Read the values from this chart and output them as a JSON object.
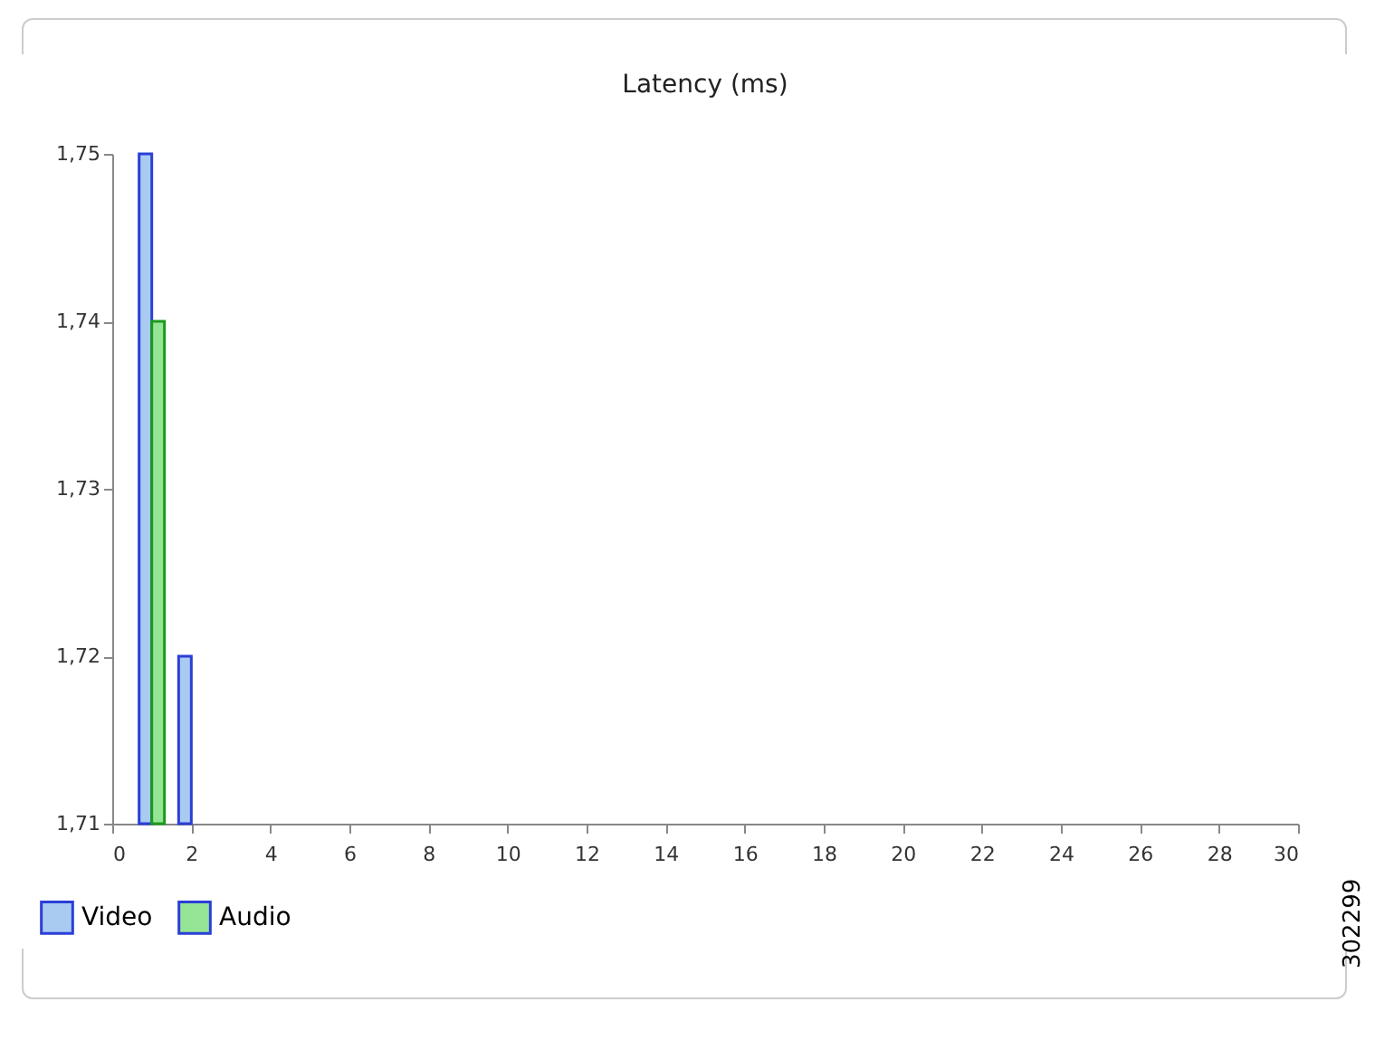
{
  "chart_data": {
    "type": "bar",
    "title": "Latency (ms)",
    "x": [
      1,
      2
    ],
    "series": [
      {
        "name": "Video",
        "color": "#a9cbf2",
        "values": [
          1.75,
          1.72
        ]
      },
      {
        "name": "Audio",
        "color": "#96e496",
        "values": [
          1.74,
          null
        ]
      }
    ],
    "xlim": [
      0,
      30
    ],
    "xticks": [
      0,
      2,
      4,
      6,
      8,
      10,
      12,
      14,
      16,
      18,
      20,
      22,
      24,
      26,
      28,
      30
    ],
    "ylim": [
      1.71,
      1.75
    ],
    "yticks": [
      {
        "value": 1.71,
        "label": "1,71"
      },
      {
        "value": 1.72,
        "label": "1,72"
      },
      {
        "value": 1.73,
        "label": "1,73"
      },
      {
        "value": 1.74,
        "label": "1,74"
      },
      {
        "value": 1.75,
        "label": "1,75"
      }
    ],
    "grid": false,
    "legend": "bottom left",
    "annotations": [
      "302299"
    ]
  }
}
